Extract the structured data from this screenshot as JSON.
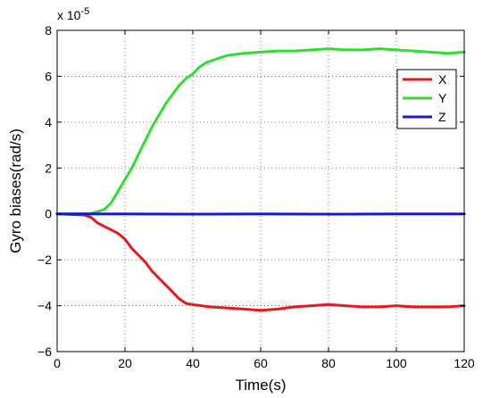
{
  "chart_data": {
    "type": "line",
    "xlabel": "Time(s)",
    "ylabel": "Gyro biases(rad/s)",
    "xlim": [
      0,
      120
    ],
    "ylim": [
      -6,
      8
    ],
    "xticks": [
      0,
      20,
      40,
      60,
      80,
      100,
      120
    ],
    "yticks": [
      -6,
      -4,
      -2,
      0,
      2,
      4,
      6,
      8
    ],
    "y_multiplier_label": "x 10",
    "y_multiplier_exponent": "-5",
    "grid": true,
    "legend_position": "top-right",
    "series": [
      {
        "name": "X",
        "color": "#e41a1c",
        "x": [
          0,
          8,
          10,
          12,
          14,
          16,
          18,
          20,
          22,
          24,
          26,
          28,
          30,
          32,
          34,
          36,
          38,
          40,
          45,
          50,
          55,
          60,
          65,
          70,
          75,
          80,
          85,
          90,
          95,
          100,
          105,
          110,
          115,
          120
        ],
        "y": [
          0,
          -0.05,
          -0.15,
          -0.4,
          -0.55,
          -0.7,
          -0.85,
          -1.1,
          -1.5,
          -1.8,
          -2.1,
          -2.5,
          -2.8,
          -3.1,
          -3.4,
          -3.7,
          -3.9,
          -3.95,
          -4.05,
          -4.1,
          -4.15,
          -4.2,
          -4.15,
          -4.05,
          -4.0,
          -3.95,
          -4.0,
          -4.05,
          -4.05,
          -4.0,
          -4.05,
          -4.05,
          -4.05,
          -4.0
        ]
      },
      {
        "name": "Y",
        "color": "#32dc32",
        "x": [
          0,
          10,
          12,
          14,
          16,
          18,
          20,
          22,
          24,
          26,
          28,
          30,
          32,
          34,
          36,
          38,
          40,
          42,
          44,
          46,
          50,
          55,
          60,
          65,
          70,
          75,
          80,
          85,
          90,
          95,
          100,
          105,
          110,
          115,
          120
        ],
        "y": [
          0,
          0.02,
          0.1,
          0.2,
          0.5,
          1.0,
          1.5,
          2.0,
          2.6,
          3.2,
          3.8,
          4.3,
          4.8,
          5.2,
          5.6,
          5.9,
          6.1,
          6.4,
          6.6,
          6.7,
          6.9,
          7.0,
          7.05,
          7.1,
          7.1,
          7.15,
          7.2,
          7.15,
          7.15,
          7.2,
          7.15,
          7.1,
          7.05,
          7.0,
          7.05
        ]
      },
      {
        "name": "Z",
        "color": "#1a1acc",
        "x": [
          0,
          20,
          40,
          60,
          80,
          100,
          120
        ],
        "y": [
          0,
          0,
          -0.01,
          0,
          -0.01,
          0,
          0
        ]
      }
    ]
  }
}
